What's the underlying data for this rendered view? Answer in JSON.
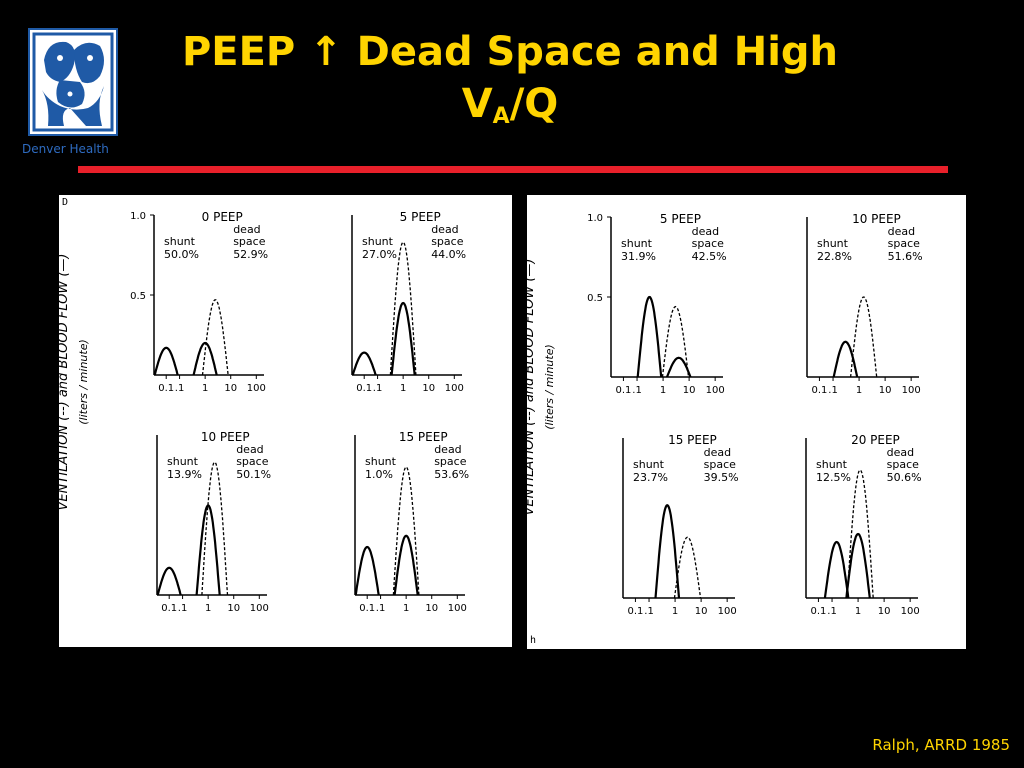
{
  "slide": {
    "title_line1": "PEEP ↑ Dead Space and High",
    "title_line2_main": "V",
    "title_line2_sub": "A",
    "title_line2_rest": "/Q",
    "logo_caption": "Denver Health",
    "citation": "Ralph, ARRD 1985",
    "accent_color": "#ffd400",
    "bar_color": "#e8202a"
  },
  "figure_left": {
    "corner_label": "D",
    "ylabel_main": "VENTILATION (--) and BLOOD FLOW (—)",
    "ylabel_sub": "(liters / minute)"
  },
  "figure_right": {
    "corner_label": "h",
    "ylabel_main": "VENTILATION (--) and BLOOD FLOW (—)",
    "ylabel_sub": "(liters / minute)"
  },
  "chart_data": [
    {
      "type": "line",
      "panel": "left-top-left",
      "title": "0 PEEP",
      "shunt": "shunt",
      "shunt_value": "50.0%",
      "dead_space": "dead space",
      "dead_space_value": "52.9%",
      "x_ticks": [
        "0.1",
        ".1",
        "1",
        "10",
        "100"
      ],
      "y_ticks": [
        "1.0",
        "0.5"
      ],
      "ylim": [
        0,
        1.0
      ],
      "blood_flow": [
        {
          "center": 0.03,
          "peak": 0.17
        },
        {
          "center": 1.0,
          "peak": 0.2
        }
      ],
      "ventilation": [
        {
          "center": 2.5,
          "peak": 0.47
        }
      ]
    },
    {
      "type": "line",
      "panel": "left-top-right",
      "title": "5 PEEP",
      "shunt": "shunt",
      "shunt_value": "27.0%",
      "dead_space": "dead space",
      "dead_space_value": "44.0%",
      "x_ticks": [
        "0.1",
        ".1",
        "1",
        "10",
        "100"
      ],
      "ylim": [
        0,
        1.0
      ],
      "blood_flow": [
        {
          "center": 0.03,
          "peak": 0.14
        },
        {
          "center": 1.0,
          "peak": 0.45
        }
      ],
      "ventilation": [
        {
          "center": 1.0,
          "peak": 0.83
        }
      ]
    },
    {
      "type": "line",
      "panel": "left-bottom-left",
      "title": "10 PEEP",
      "shunt": "shunt",
      "shunt_value": "13.9%",
      "dead_space": "dead space",
      "dead_space_value": "50.1%",
      "x_ticks": [
        "0.1",
        ".1",
        "1",
        "10",
        "100"
      ],
      "ylim": [
        0,
        1.0
      ],
      "blood_flow": [
        {
          "center": 0.03,
          "peak": 0.17
        },
        {
          "center": 1.0,
          "peak": 0.56
        }
      ],
      "ventilation": [
        {
          "center": 1.8,
          "peak": 0.83
        }
      ]
    },
    {
      "type": "line",
      "panel": "left-bottom-right",
      "title": "15 PEEP",
      "shunt": "shunt",
      "shunt_value": "1.0%",
      "dead_space": "dead space",
      "dead_space_value": "53.6%",
      "x_ticks": [
        "0.1",
        ".1",
        "1",
        "10",
        "100"
      ],
      "ylim": [
        0,
        1.0
      ],
      "blood_flow": [
        {
          "center": 0.03,
          "peak": 0.3
        },
        {
          "center": 1.0,
          "peak": 0.37
        }
      ],
      "ventilation": [
        {
          "center": 1.0,
          "peak": 0.8
        }
      ]
    },
    {
      "type": "line",
      "panel": "right-top-left",
      "title": "5 PEEP",
      "shunt": "shunt",
      "shunt_value": "31.9%",
      "dead_space": "dead space",
      "dead_space_value": "42.5%",
      "x_ticks": [
        "0.1",
        ".1",
        "1",
        "10",
        "100"
      ],
      "y_ticks": [
        "1.0",
        "0.5"
      ],
      "ylim": [
        0,
        1.0
      ],
      "blood_flow": [
        {
          "center": 0.3,
          "peak": 0.5
        },
        {
          "center": 4.0,
          "peak": 0.12
        }
      ],
      "ventilation": [
        {
          "center": 3.0,
          "peak": 0.44
        }
      ]
    },
    {
      "type": "line",
      "panel": "right-top-right",
      "title": "10 PEEP",
      "shunt": "shunt",
      "shunt_value": "22.8%",
      "dead_space": "dead space",
      "dead_space_value": "51.6%",
      "x_ticks": [
        "0.1",
        ".1",
        "1",
        "10",
        "100"
      ],
      "ylim": [
        0,
        1.0
      ],
      "blood_flow": [
        {
          "center": 0.3,
          "peak": 0.22
        }
      ],
      "ventilation": [
        {
          "center": 1.5,
          "peak": 0.5
        }
      ]
    },
    {
      "type": "line",
      "panel": "right-bottom-left",
      "title": "15 PEEP",
      "shunt": "shunt",
      "shunt_value": "23.7%",
      "dead_space": "dead space",
      "dead_space_value": "39.5%",
      "x_ticks": [
        "0.1",
        ".1",
        "1",
        "10",
        "100"
      ],
      "ylim": [
        0,
        1.0
      ],
      "blood_flow": [
        {
          "center": 0.5,
          "peak": 0.58
        }
      ],
      "ventilation": [
        {
          "center": 3.0,
          "peak": 0.38
        }
      ]
    },
    {
      "type": "line",
      "panel": "right-bottom-right",
      "title": "20 PEEP",
      "shunt": "shunt",
      "shunt_value": "12.5%",
      "dead_space": "dead space",
      "dead_space_value": "50.6%",
      "x_ticks": [
        "0.1",
        ".1",
        "1",
        "10",
        "100"
      ],
      "ylim": [
        0,
        1.0
      ],
      "blood_flow": [
        {
          "center": 0.15,
          "peak": 0.35
        },
        {
          "center": 1.0,
          "peak": 0.4
        }
      ],
      "ventilation": [
        {
          "center": 1.2,
          "peak": 0.8
        }
      ]
    }
  ]
}
